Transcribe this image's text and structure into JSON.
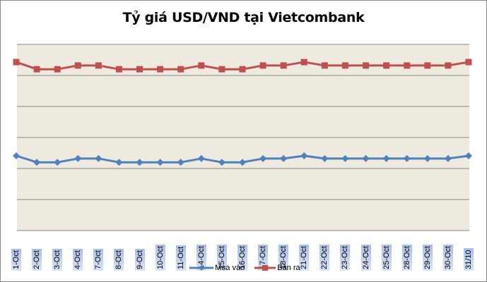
{
  "chart_data": {
    "type": "line",
    "title": "Tỷ giá USD/VND tại Vietcombank",
    "xlabel": "",
    "ylabel": "",
    "y_axis_labels_visible": false,
    "ylim": [
      0,
      6
    ],
    "y_units_note": "values in gridline units (axis tick labels not shown)",
    "grid": true,
    "legend_position": "bottom",
    "categories": [
      "1-Oct",
      "2-Oct",
      "3-Oct",
      "4-Oct",
      "7-Oct",
      "8-Oct",
      "9-Oct",
      "10-Oct",
      "11-Oct",
      "14-Oct",
      "15-Oct",
      "16-Oct",
      "17-Oct",
      "18-Oct",
      "21-Oct",
      "22-Oct",
      "23-Oct",
      "24-Oct",
      "25-Oct",
      "28-Oct",
      "29-Oct",
      "30-Oct",
      "31/10"
    ],
    "series": [
      {
        "name": "Mua vào",
        "color": "#4F81BD",
        "marker": "diamond",
        "values": [
          2.41,
          2.2,
          2.2,
          2.32,
          2.32,
          2.2,
          2.2,
          2.2,
          2.2,
          2.32,
          2.2,
          2.2,
          2.32,
          2.32,
          2.41,
          2.32,
          2.32,
          2.32,
          2.32,
          2.32,
          2.32,
          2.32,
          2.41
        ]
      },
      {
        "name": "Bán ra",
        "color": "#C0504D",
        "marker": "square",
        "values": [
          5.43,
          5.2,
          5.2,
          5.32,
          5.32,
          5.2,
          5.2,
          5.2,
          5.2,
          5.32,
          5.2,
          5.2,
          5.32,
          5.32,
          5.43,
          5.32,
          5.32,
          5.32,
          5.32,
          5.32,
          5.32,
          5.32,
          5.43
        ]
      }
    ]
  },
  "legend": {
    "items": [
      {
        "label": "Mua vào",
        "color": "#4F81BD"
      },
      {
        "label": "Bán ra",
        "color": "#C0504D"
      }
    ]
  },
  "colors": {
    "plot_background": "#EEEAE0",
    "gridline": "#868686"
  }
}
